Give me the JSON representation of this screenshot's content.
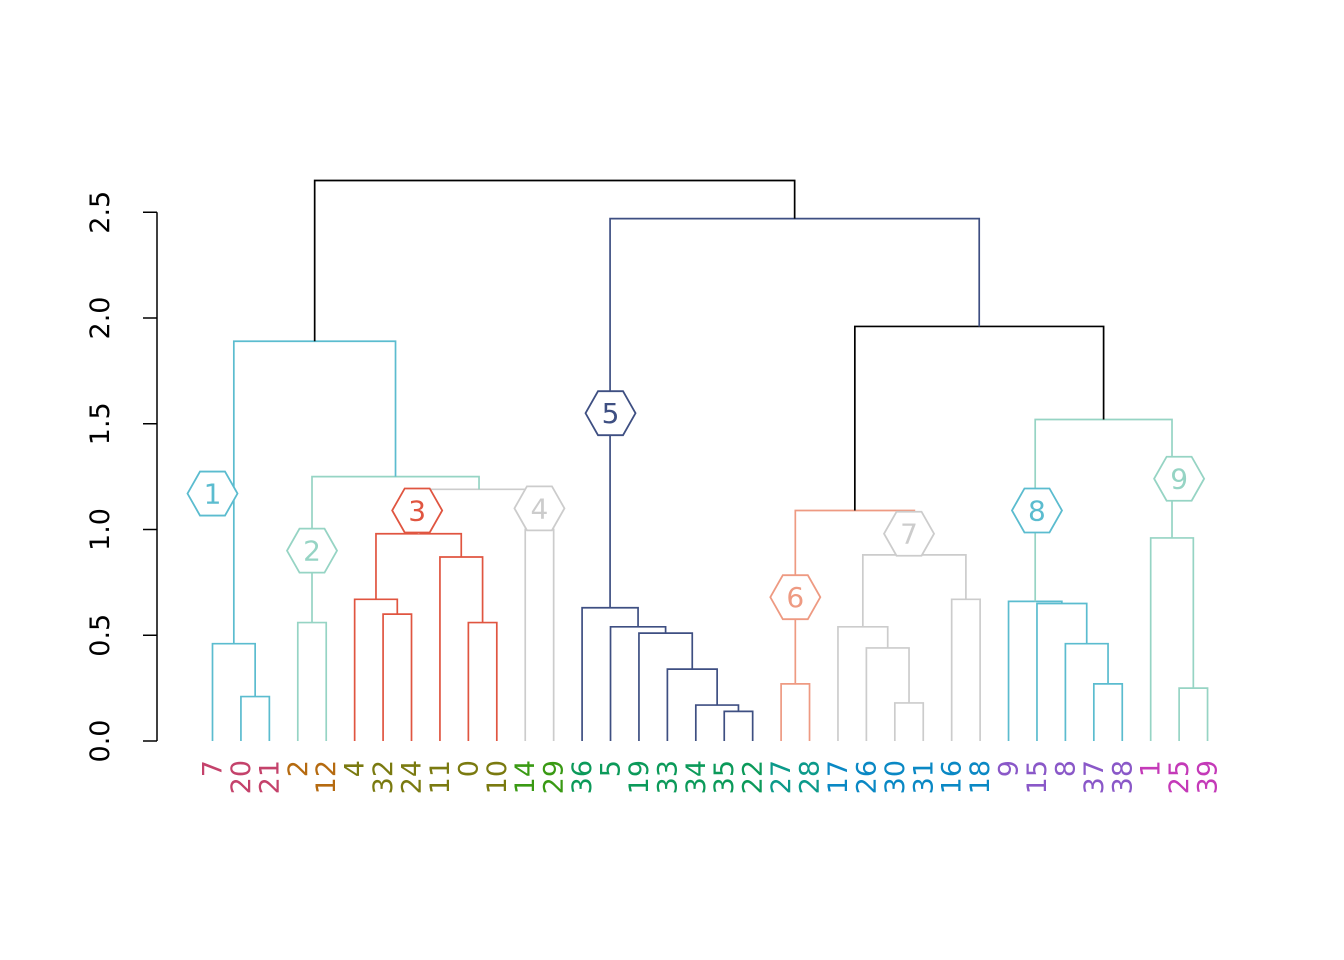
{
  "chart_data": {
    "type": "dendrogram",
    "title": "",
    "xlabel": "",
    "ylabel": "",
    "ylim": [
      0,
      2.5
    ],
    "y_ticks": [
      "0.0",
      "0.5",
      "1.0",
      "1.5",
      "2.0",
      "2.5"
    ],
    "grid": false,
    "leaves": [
      {
        "label": "7",
        "color": "#c4426b"
      },
      {
        "label": "20",
        "color": "#c4426b"
      },
      {
        "label": "21",
        "color": "#c4426b"
      },
      {
        "label": "2",
        "color": "#b56a10"
      },
      {
        "label": "12",
        "color": "#b56a10"
      },
      {
        "label": "4",
        "color": "#7a7a10"
      },
      {
        "label": "32",
        "color": "#7a7a10"
      },
      {
        "label": "24",
        "color": "#7a7a10"
      },
      {
        "label": "11",
        "color": "#7a7a10"
      },
      {
        "label": "0",
        "color": "#7a7a10"
      },
      {
        "label": "10",
        "color": "#7a7a10"
      },
      {
        "label": "14",
        "color": "#3a9a14"
      },
      {
        "label": "29",
        "color": "#3a9a14"
      },
      {
        "label": "36",
        "color": "#0c9a5a"
      },
      {
        "label": "5",
        "color": "#0c9a5a"
      },
      {
        "label": "19",
        "color": "#0c9a5a"
      },
      {
        "label": "33",
        "color": "#0c9a5a"
      },
      {
        "label": "34",
        "color": "#0c9a5a"
      },
      {
        "label": "35",
        "color": "#0c9a5a"
      },
      {
        "label": "22",
        "color": "#0c9a5a"
      },
      {
        "label": "27",
        "color": "#0c9a8a"
      },
      {
        "label": "28",
        "color": "#0c9a8a"
      },
      {
        "label": "17",
        "color": "#0a88c4"
      },
      {
        "label": "26",
        "color": "#0a88c4"
      },
      {
        "label": "30",
        "color": "#0a88c4"
      },
      {
        "label": "31",
        "color": "#0a88c4"
      },
      {
        "label": "16",
        "color": "#0a88c4"
      },
      {
        "label": "18",
        "color": "#0a88c4"
      },
      {
        "label": "9",
        "color": "#8a58c8"
      },
      {
        "label": "15",
        "color": "#8a58c8"
      },
      {
        "label": "8",
        "color": "#8a58c8"
      },
      {
        "label": "37",
        "color": "#8a58c8"
      },
      {
        "label": "38",
        "color": "#8a58c8"
      },
      {
        "label": "1",
        "color": "#c43ab8"
      },
      {
        "label": "25",
        "color": "#c43ab8"
      },
      {
        "label": "39",
        "color": "#c43ab8"
      }
    ],
    "merges": [
      {
        "id": "A",
        "children": [
          1,
          2
        ],
        "height": 0.21,
        "color": "#5bbccf"
      },
      {
        "id": "B",
        "children": [
          0,
          "A"
        ],
        "height": 0.46,
        "color": "#5bbccf"
      },
      {
        "id": "C",
        "children": [
          3,
          4
        ],
        "height": 0.56,
        "color": "#96d4c4"
      },
      {
        "id": "D",
        "children": [
          6,
          7
        ],
        "height": 0.6,
        "color": "#e05540"
      },
      {
        "id": "E",
        "children": [
          5,
          "D"
        ],
        "height": 0.67,
        "color": "#e05540"
      },
      {
        "id": "F",
        "children": [
          9,
          10
        ],
        "height": 0.56,
        "color": "#e05540"
      },
      {
        "id": "G",
        "children": [
          8,
          "F"
        ],
        "height": 0.87,
        "color": "#e05540"
      },
      {
        "id": "H",
        "children": [
          "E",
          "G"
        ],
        "height": 0.98,
        "color": "#e05540"
      },
      {
        "id": "I",
        "children": [
          11,
          12
        ],
        "height": 1.0,
        "color": "#cccccc"
      },
      {
        "id": "J",
        "children": [
          "H",
          "I"
        ],
        "height": 1.19,
        "color": "#cccccc"
      },
      {
        "id": "K",
        "children": [
          "C",
          "J"
        ],
        "height": 1.25,
        "color": "#96d4c4"
      },
      {
        "id": "L",
        "children": [
          "B",
          "K"
        ],
        "height": 1.89,
        "color": "#5bbccf"
      },
      {
        "id": "M",
        "children": [
          18,
          19
        ],
        "height": 0.14,
        "color": "#3e4f82"
      },
      {
        "id": "N",
        "children": [
          17,
          "M"
        ],
        "height": 0.17,
        "color": "#3e4f82"
      },
      {
        "id": "O",
        "children": [
          16,
          "N"
        ],
        "height": 0.34,
        "color": "#3e4f82"
      },
      {
        "id": "P",
        "children": [
          15,
          "O"
        ],
        "height": 0.51,
        "color": "#3e4f82"
      },
      {
        "id": "Q",
        "children": [
          14,
          "P"
        ],
        "height": 0.54,
        "color": "#3e4f82"
      },
      {
        "id": "R",
        "children": [
          13,
          "Q"
        ],
        "height": 0.63,
        "color": "#3e4f82"
      },
      {
        "id": "S",
        "children": [
          20,
          21
        ],
        "height": 0.27,
        "color": "#ee9a82"
      },
      {
        "id": "T",
        "children": [
          24,
          25
        ],
        "height": 0.18,
        "color": "#cccccc"
      },
      {
        "id": "U",
        "children": [
          23,
          "T"
        ],
        "height": 0.44,
        "color": "#cccccc"
      },
      {
        "id": "V",
        "children": [
          22,
          "U"
        ],
        "height": 0.54,
        "color": "#cccccc"
      },
      {
        "id": "W",
        "children": [
          26,
          27
        ],
        "height": 0.67,
        "color": "#cccccc"
      },
      {
        "id": "X",
        "children": [
          "V",
          "W"
        ],
        "height": 0.88,
        "color": "#cccccc"
      },
      {
        "id": "Y",
        "children": [
          "S",
          "X"
        ],
        "height": 1.09,
        "color": "#ee9a82"
      },
      {
        "id": "Z",
        "children": [
          31,
          32
        ],
        "height": 0.27,
        "color": "#5bbccf"
      },
      {
        "id": "AA",
        "children": [
          30,
          "Z"
        ],
        "height": 0.46,
        "color": "#5bbccf"
      },
      {
        "id": "AB",
        "children": [
          29,
          "AA"
        ],
        "height": 0.65,
        "color": "#5bbccf"
      },
      {
        "id": "AC",
        "children": [
          28,
          "AB"
        ],
        "height": 0.66,
        "color": "#5bbccf"
      },
      {
        "id": "AD",
        "children": [
          34,
          35
        ],
        "height": 0.25,
        "color": "#96d4c4"
      },
      {
        "id": "AE",
        "children": [
          33,
          "AD"
        ],
        "height": 0.96,
        "color": "#96d4c4"
      },
      {
        "id": "AF",
        "children": [
          "AC",
          "AE"
        ],
        "height": 1.52,
        "color": "#96d4c4"
      },
      {
        "id": "AG",
        "children": [
          "Y",
          "AF"
        ],
        "height": 1.96,
        "color": "#000000"
      },
      {
        "id": "AH",
        "children": [
          "R",
          "AG"
        ],
        "height": 2.47,
        "color": "#3e4f82"
      },
      {
        "id": "AI",
        "children": [
          "L",
          "AH"
        ],
        "height": 2.65,
        "color": "#000000"
      }
    ],
    "clusters": [
      {
        "label": "1",
        "color": "#5bbccf",
        "leaf": 0,
        "height": 1.17
      },
      {
        "label": "2",
        "color": "#96d4c4",
        "leaf": 3.5,
        "height": 0.9
      },
      {
        "label": "3",
        "color": "#e05540",
        "leaf": 7.2,
        "height": 1.09
      },
      {
        "label": "4",
        "color": "#cccccc",
        "leaf": 11.5,
        "height": 1.1
      },
      {
        "label": "5",
        "color": "#3e4f82",
        "leaf": 14.0,
        "height": 1.55
      },
      {
        "label": "6",
        "color": "#ee9a82",
        "leaf": 20.5,
        "height": 0.68
      },
      {
        "label": "7",
        "color": "#cccccc",
        "leaf": 24.5,
        "height": 0.98
      },
      {
        "label": "8",
        "color": "#5bbccf",
        "leaf": 29.0,
        "height": 1.09
      },
      {
        "label": "9",
        "color": "#96d4c4",
        "leaf": 34.0,
        "height": 1.24
      }
    ]
  }
}
